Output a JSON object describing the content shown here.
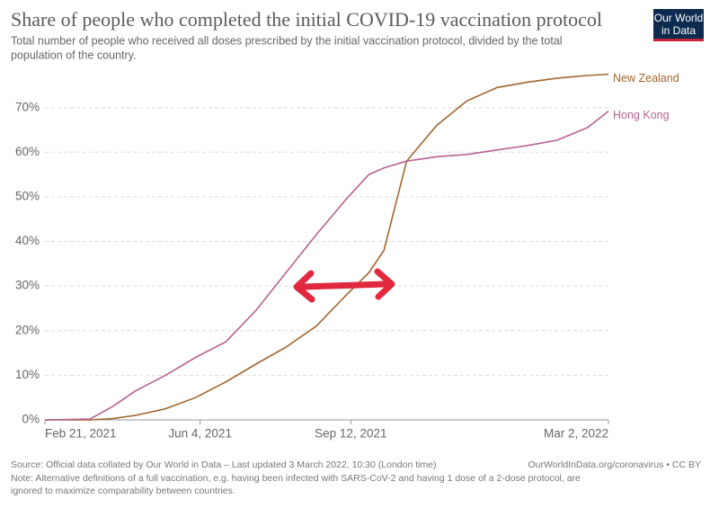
{
  "chart_data": {
    "type": "line",
    "title": "Share of people who completed the initial COVID-19 vaccination protocol",
    "subtitle": [
      "Total number of people who received all doses prescribed by the initial vaccination protocol, divided by the total",
      "population of the country."
    ],
    "logo": [
      "Our World",
      "in Data"
    ],
    "x": [
      "2021-02-21",
      "2021-03-23",
      "2021-04-07",
      "2021-04-22",
      "2021-05-12",
      "2021-06-01",
      "2021-06-21",
      "2021-07-11",
      "2021-07-31",
      "2021-08-20",
      "2021-09-09",
      "2021-09-24",
      "2021-10-04",
      "2021-10-19",
      "2021-11-08",
      "2021-11-28",
      "2021-12-18",
      "2022-01-07",
      "2022-01-27",
      "2022-02-16",
      "2022-03-02"
    ],
    "series": [
      {
        "name": "New Zealand",
        "color": "#a2652e",
        "values": [
          0,
          0,
          0.3,
          1,
          2.5,
          5,
          8.5,
          12.5,
          16.3,
          21,
          28,
          33,
          38,
          58,
          66,
          71.5,
          74.5,
          75.7,
          76.6,
          77.2,
          77.5
        ]
      },
      {
        "name": "Hong Kong",
        "color": "#b8628f",
        "values": [
          0,
          0.2,
          3,
          6.5,
          10,
          14,
          17.5,
          24.5,
          33,
          41.5,
          49.5,
          55,
          56.5,
          58,
          59,
          59.5,
          60.5,
          61.5,
          62.7,
          65.5,
          69.2
        ]
      }
    ],
    "xlim": [
      "2021-02-21",
      "2022-03-02"
    ],
    "xticks": [
      {
        "value": "2021-02-21",
        "label": "Feb 21, 2021"
      },
      {
        "value": "2021-06-04",
        "label": "Jun 4, 2021"
      },
      {
        "value": "2021-09-12",
        "label": "Sep 12, 2021"
      },
      {
        "value": "2022-03-02",
        "label": "Mar 2, 2022"
      }
    ],
    "ylim": [
      0,
      78
    ],
    "yticks": [
      {
        "value": 0,
        "label": "0%"
      },
      {
        "value": 10,
        "label": "10%"
      },
      {
        "value": 20,
        "label": "20%"
      },
      {
        "value": 30,
        "label": "30%"
      },
      {
        "value": 40,
        "label": "40%"
      },
      {
        "value": 50,
        "label": "50%"
      },
      {
        "value": 60,
        "label": "60%"
      },
      {
        "value": 70,
        "label": "70%"
      }
    ],
    "grid": true,
    "source": "Source: Official data collated by Our World in Data – Last updated 3 March 2022, 10:30 (London time)",
    "source_right": "OurWorldInData.org/coronavirus • CC BY",
    "note": [
      "Note: Alternative definitions of a full vaccination, e.g. having been infected with SARS-CoV-2 and having 1 dose of a 2-dose protocol, are",
      "ignored to maximize comparability between countries."
    ]
  }
}
